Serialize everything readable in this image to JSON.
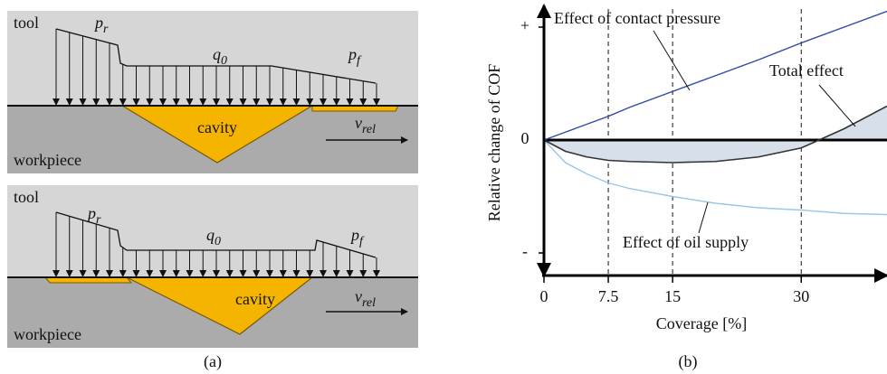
{
  "panel_a": {
    "caption": "(a)",
    "diagrams": [
      {
        "tool": "tool",
        "workpiece": "workpiece",
        "cavity": "cavity",
        "p_r": {
          "symbol": "p",
          "sub": "r"
        },
        "q_0": {
          "symbol": "q",
          "sub": "0"
        },
        "p_f": {
          "symbol": "p",
          "sub": "f"
        },
        "v_rel": {
          "symbol": "v",
          "sub": "rel"
        }
      },
      {
        "tool": "tool",
        "workpiece": "workpiece",
        "cavity": "cavity",
        "p_r": {
          "symbol": "p",
          "sub": "r"
        },
        "q_0": {
          "symbol": "q",
          "sub": "0"
        },
        "p_f": {
          "symbol": "p",
          "sub": "f"
        },
        "v_rel": {
          "symbol": "v",
          "sub": "rel"
        }
      }
    ]
  },
  "chart_data": {
    "type": "line",
    "caption": "(b)",
    "x_label": "Coverage [%]",
    "y_label": "Relative change of COF",
    "x": [
      0,
      2.5,
      5,
      7.5,
      10,
      15,
      20,
      25,
      30,
      35,
      40
    ],
    "xlim": [
      0,
      40
    ],
    "xticks": [
      0,
      7.5,
      15,
      30
    ],
    "ylim": [
      -1.2,
      1.16
    ],
    "yticks": [
      {
        "value": 1,
        "label": "+"
      },
      0,
      {
        "value": -1,
        "label": "-"
      }
    ],
    "grid": "dashed",
    "series": [
      {
        "name": "Effect of contact pressure",
        "color": "#2c48a8",
        "values": [
          0,
          0.07,
          0.14,
          0.21,
          0.29,
          0.43,
          0.57,
          0.71,
          0.86,
          1.0,
          1.14
        ]
      },
      {
        "name": "Effect of oil supply",
        "color": "#9cc6e6",
        "values": [
          0,
          -0.2,
          -0.3,
          -0.38,
          -0.43,
          -0.5,
          -0.56,
          -0.6,
          -0.62,
          -0.65,
          -0.66
        ]
      },
      {
        "name": "Total effect",
        "color": "#333333",
        "fill": "#d6dfea",
        "values": [
          0,
          -0.1,
          -0.15,
          -0.18,
          -0.19,
          -0.2,
          -0.19,
          -0.15,
          -0.07,
          0.1,
          0.3
        ]
      }
    ]
  }
}
